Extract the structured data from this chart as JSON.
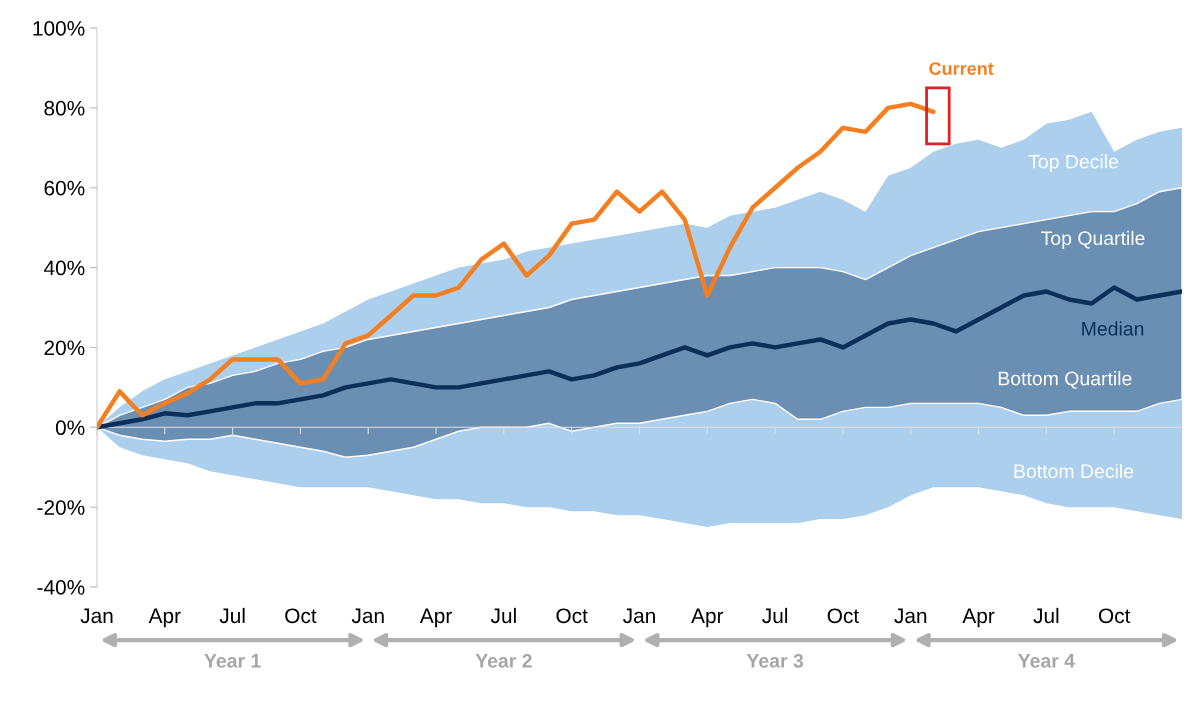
{
  "chart_data": {
    "type": "area",
    "categories": [
      "Jan",
      null,
      null,
      "Apr",
      null,
      null,
      "Jul",
      null,
      null,
      "Oct",
      null,
      null,
      "Jan",
      null,
      null,
      "Apr",
      null,
      null,
      "Jul",
      null,
      null,
      "Oct",
      null,
      null,
      "Jan",
      null,
      null,
      "Apr",
      null,
      null,
      "Jul",
      null,
      null,
      "Oct",
      null,
      null,
      "Jan",
      null,
      null,
      "Apr",
      null,
      null,
      "Jul",
      null,
      null,
      "Oct",
      null,
      null,
      null
    ],
    "series": [
      {
        "name": "Top Decile",
        "color": "#abcfed",
        "values": [
          0,
          5,
          9,
          12,
          14,
          16,
          18,
          20,
          22,
          24,
          26,
          29,
          32,
          34,
          36,
          38,
          40,
          41,
          42,
          44,
          45,
          46,
          47,
          48,
          49,
          50,
          51,
          50,
          53,
          54,
          55,
          57,
          59,
          57,
          54,
          63,
          65,
          69,
          71,
          72,
          70,
          72,
          76,
          77,
          79,
          69,
          72,
          74,
          75
        ]
      },
      {
        "name": "Bottom Decile",
        "color": "#abcfed",
        "values": [
          0,
          -5,
          -7,
          -8,
          -9,
          -11,
          -12,
          -13,
          -14,
          -15,
          -15,
          -15,
          -15,
          -16,
          -17,
          -18,
          -18,
          -19,
          -19,
          -20,
          -20,
          -21,
          -21,
          -22,
          -22,
          -23,
          -24,
          -25,
          -24,
          -24,
          -24,
          -24,
          -23,
          -23,
          -22,
          -20,
          -17,
          -15,
          -15,
          -15,
          -16,
          -17,
          -19,
          -20,
          -20,
          -20,
          -21,
          -22,
          -23
        ]
      },
      {
        "type": "line",
        "name": "Median",
        "color": "#0c2f5a",
        "values": [
          0,
          1,
          2,
          3.5,
          3,
          4,
          5,
          6,
          6,
          7,
          8,
          10,
          11,
          12,
          11,
          10,
          10,
          11,
          12,
          13,
          14,
          12,
          13,
          15,
          16,
          18,
          20,
          18,
          20,
          21,
          20,
          21,
          22,
          20,
          23,
          26,
          27,
          26,
          24,
          27,
          30,
          33,
          34,
          32,
          31,
          35,
          32,
          33,
          34
        ],
        "lower": [
          0,
          -2,
          -3,
          -3.5,
          -3,
          -3,
          -2,
          -3,
          -4,
          -5,
          -6,
          -7.5,
          -7,
          -6,
          -5,
          -3,
          -1,
          0,
          0,
          0,
          1,
          -1,
          0,
          1,
          1,
          2,
          3,
          4,
          6,
          7,
          6,
          2,
          2,
          4,
          5,
          5,
          6,
          6,
          6,
          6,
          5,
          3,
          3,
          4,
          4,
          4,
          4,
          6,
          7
        ],
        "upper": [
          0,
          3,
          5,
          7,
          10,
          11,
          13,
          14,
          16,
          17,
          19,
          20,
          22,
          23,
          24,
          25,
          26,
          27,
          28,
          29,
          30,
          32,
          33,
          34,
          35,
          36,
          37,
          38,
          38,
          39,
          40,
          40,
          40,
          39,
          37,
          40,
          43,
          45,
          47,
          49,
          50,
          51,
          52,
          53,
          54,
          54,
          56,
          59,
          60
        ]
      },
      {
        "type": "line",
        "name": "Current",
        "color": "#f47f20",
        "values": [
          0,
          9,
          3,
          6,
          8.5,
          12,
          17,
          17,
          17,
          11,
          12,
          21,
          23,
          28,
          33,
          33,
          35,
          42,
          46,
          38,
          43,
          51,
          52,
          59,
          54,
          59,
          52,
          33,
          45,
          55,
          60,
          65,
          69,
          75,
          74,
          80,
          81,
          79,
          null,
          null,
          null,
          null,
          null,
          null,
          null,
          null,
          null,
          null,
          null
        ]
      }
    ],
    "ylim": [
      -40,
      100
    ],
    "yticks": [
      {
        "value": -40,
        "label": "-40%"
      },
      {
        "value": -20,
        "label": "-20%"
      },
      {
        "value": 0,
        "label": "0%"
      },
      {
        "value": 20,
        "label": "20%"
      },
      {
        "value": 40,
        "label": "40%"
      },
      {
        "value": 60,
        "label": "60%"
      },
      {
        "value": 80,
        "label": "80%"
      },
      {
        "value": 100,
        "label": "100%"
      }
    ],
    "annotations": [
      "Top Quartile",
      "Bottom Quartile",
      "Year 1",
      "Year 2",
      "Year 3",
      "Year 4"
    ]
  }
}
